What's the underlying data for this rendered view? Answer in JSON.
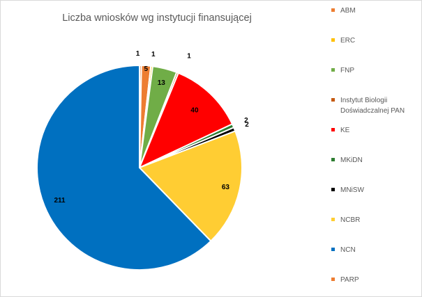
{
  "chart_data": {
    "type": "pie",
    "title": "Liczba wniosków  wg instytucji finansującej",
    "legend_position": "right",
    "categories": [
      "ABM",
      "ERC",
      "FNP",
      "Instytut Biologii Doświadczalnej PAN",
      "KE",
      "MKiDN",
      "MNiSW",
      "NCBR",
      "NCN",
      "PARP"
    ],
    "values": [
      5,
      1,
      13,
      1,
      40,
      2,
      2,
      63,
      211,
      1
    ],
    "colors": [
      "#ED7D31",
      "#FFC000",
      "#70AD47",
      "#C55A11",
      "#FF0000",
      "#2E7D32",
      "#000000",
      "#FFCD33",
      "#0070C0",
      "#ED7D31"
    ],
    "legend_labels": [
      [
        "ABM"
      ],
      [
        "ERC"
      ],
      [
        "FNP"
      ],
      [
        "Instytut Biologii",
        "Doświadczalnej PAN"
      ],
      [
        "KE"
      ],
      [
        "MKiDN"
      ],
      [
        "MNiSW"
      ],
      [
        "NCBR"
      ],
      [
        "NCN"
      ],
      [
        "PARP"
      ]
    ],
    "data_labels": [
      "5",
      "1",
      "13",
      "1",
      "40",
      "2",
      "2",
      "63",
      "211",
      "1"
    ]
  }
}
